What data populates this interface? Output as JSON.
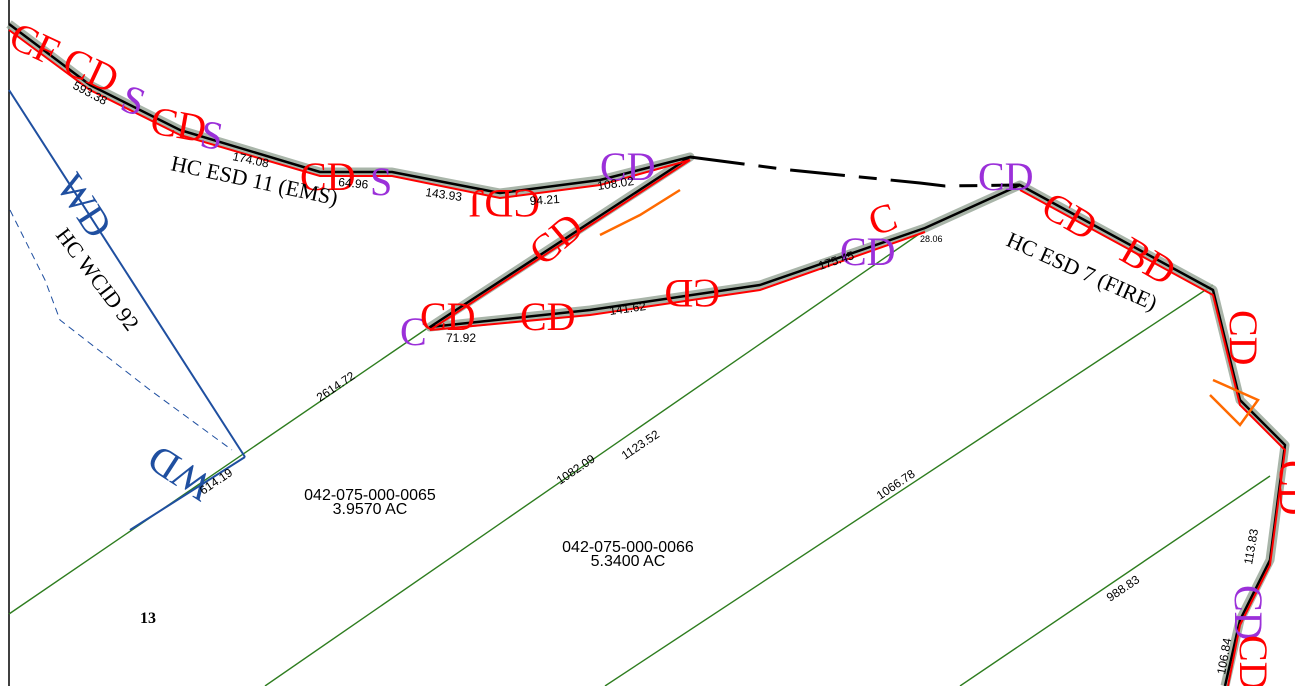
{
  "map": {
    "district_labels": {
      "esd11": "HC ESD 11 (EMS)",
      "esd7": "HC ESD 7 (FIRE)",
      "wcid92": "HC WCID 92",
      "wd_upper": "WD",
      "wd_lower": "WD"
    },
    "parcels": [
      {
        "id": "042-075-000-0065",
        "area": "3.9570 AC"
      },
      {
        "id": "042-075-000-0066",
        "area": "5.3400 AC"
      }
    ],
    "section_number": "13",
    "dimensions": {
      "d1": "593.38",
      "d2": "174.08",
      "d3": "64.96",
      "d4": "143.93",
      "d5": "94.21",
      "d6": "108.02",
      "d7": "175.45",
      "d8": "28.06",
      "d9": "141.62",
      "d10": "71.92",
      "d11": "2614.72",
      "d12": "614.19",
      "d13": "1082.09",
      "d14": "1123.52",
      "d15": "1066.78",
      "d16": "988.83",
      "d17": "113.83",
      "d18": "106.84"
    },
    "colors": {
      "lot_line": "#2e7d1f",
      "boundary": "#000000",
      "wd_line": "#1f4fa0",
      "esd_red": "#ff0000",
      "esd_purple": "#9b30d9",
      "esd_orange": "#ff6a00",
      "buffer": "#9aa89a"
    }
  }
}
